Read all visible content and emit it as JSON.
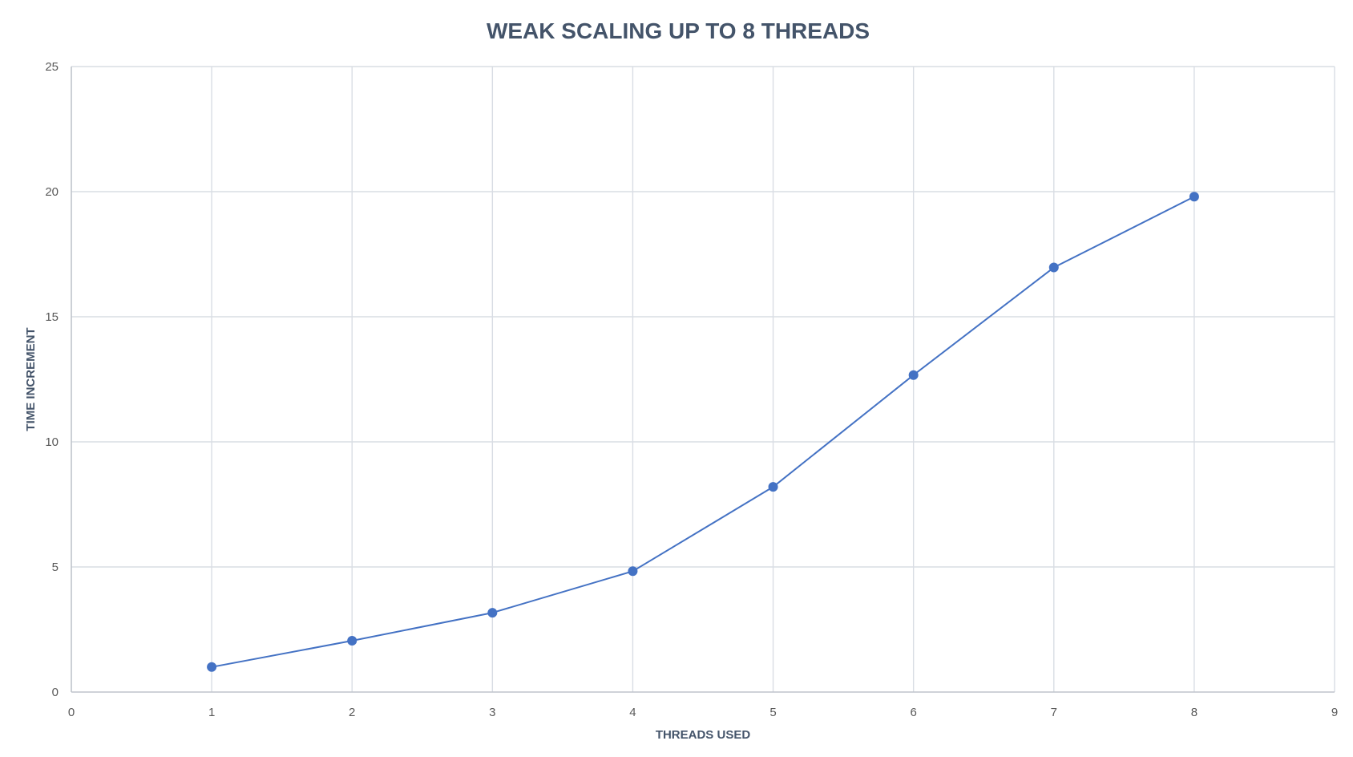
{
  "chart_data": {
    "type": "scatter",
    "title": "WEAK SCALING UP TO 8 THREADS",
    "xlabel": "THREADS USED",
    "ylabel": "TIME INCREMENT",
    "xlim": [
      0,
      9
    ],
    "ylim": [
      0,
      25
    ],
    "xticks": [
      "0",
      "1",
      "2",
      "3",
      "4",
      "5",
      "6",
      "7",
      "8",
      "9"
    ],
    "yticks": [
      "0",
      "5",
      "10",
      "15",
      "20",
      "25"
    ],
    "grid": true,
    "legend": "none",
    "markers": true,
    "lines": true,
    "series": [
      {
        "x": [
          1,
          2,
          3,
          4,
          5,
          6,
          7,
          8
        ],
        "y": [
          1.0,
          2.05,
          3.17,
          4.83,
          8.2,
          12.67,
          16.97,
          19.8
        ],
        "color": "#4472c4"
      }
    ]
  },
  "colors": {
    "grid": "#d9dde4",
    "axis": "#bfc4cc",
    "title": "#44546a",
    "tick": "#595959",
    "series": "#4472c4"
  }
}
